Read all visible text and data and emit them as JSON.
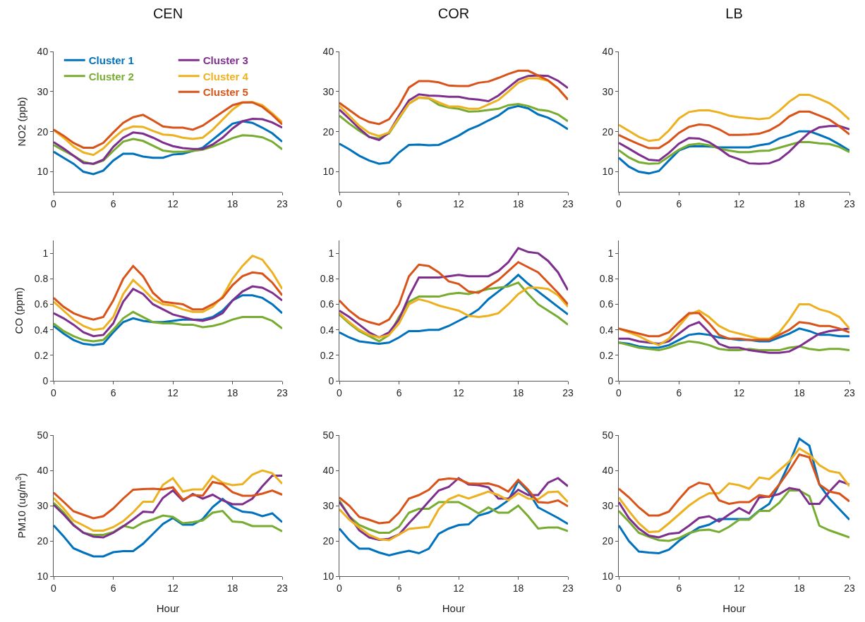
{
  "chart_data": [
    {
      "type": "line",
      "title": "CEN",
      "ylabel": "NO2 (ppb)",
      "legend": "top left",
      "x": [
        0,
        1,
        2,
        3,
        4,
        5,
        6,
        7,
        8,
        9,
        10,
        11,
        12,
        13,
        14,
        15,
        16,
        17,
        18,
        19,
        20,
        21,
        22,
        23
      ],
      "xlim": [
        0,
        23
      ],
      "xticks": [
        0,
        6,
        12,
        18,
        23
      ],
      "ylim": [
        5,
        40
      ],
      "yticks": [
        10,
        20,
        30,
        40
      ],
      "series": [
        {
          "name": "Cluster 1",
          "color": "#0072bd",
          "values": [
            15,
            13.5,
            12,
            10,
            9.4,
            10.3,
            12.8,
            14.5,
            14.5,
            13.8,
            13.5,
            13.5,
            14.3,
            14.5,
            15.2,
            16,
            18,
            20,
            22,
            22.6,
            22.2,
            21,
            19.6,
            17.5
          ]
        },
        {
          "name": "Cluster 2",
          "color": "#77ac30",
          "values": [
            16.7,
            15.3,
            14,
            12.5,
            11.9,
            12.8,
            15.2,
            17.5,
            18.2,
            17.7,
            16.5,
            15.3,
            15,
            15,
            15.2,
            15.5,
            16.3,
            17.3,
            18.4,
            19.1,
            19,
            18.6,
            17.5,
            15.6
          ]
        },
        {
          "name": "Cluster 3",
          "color": "#7e2f8e",
          "values": [
            17.4,
            15.8,
            14,
            12.2,
            12,
            13,
            16.2,
            18.5,
            19.8,
            19.5,
            18.5,
            17.3,
            16.4,
            15.9,
            15.7,
            15.7,
            16.8,
            18.5,
            20.8,
            22.6,
            23.2,
            23.1,
            22.3,
            21
          ]
        },
        {
          "name": "Cluster 4",
          "color": "#edb120",
          "values": [
            20.4,
            18.5,
            16.3,
            14.8,
            14.2,
            15.8,
            18.3,
            20.4,
            21.3,
            21.2,
            20.2,
            19.3,
            19.1,
            18.5,
            18.2,
            18.5,
            20.5,
            23,
            25.5,
            27.3,
            27.4,
            26.6,
            24.6,
            22.3
          ]
        },
        {
          "name": "Cluster 5",
          "color": "#d95319",
          "values": [
            20.5,
            19,
            17.2,
            16,
            16,
            17.2,
            19.8,
            22.2,
            23.6,
            24.2,
            22.8,
            21.3,
            21,
            21,
            20.5,
            21.5,
            23.2,
            24.9,
            26.6,
            27.3,
            27.3,
            26.2,
            24.2,
            21.8
          ]
        }
      ]
    },
    {
      "type": "line",
      "title": "COR",
      "x": [
        0,
        1,
        2,
        3,
        4,
        5,
        6,
        7,
        8,
        9,
        10,
        11,
        12,
        13,
        14,
        15,
        16,
        17,
        18,
        19,
        20,
        21,
        22,
        23
      ],
      "xlim": [
        0,
        23
      ],
      "xticks": [
        0,
        6,
        12,
        18,
        23
      ],
      "ylim": [
        5,
        40
      ],
      "yticks": [
        10,
        20,
        30,
        40
      ],
      "series": [
        {
          "color": "#0072bd",
          "values": [
            17,
            15.6,
            14,
            12.8,
            12,
            12.3,
            14.8,
            16.7,
            16.8,
            16.6,
            16.7,
            17.8,
            19,
            20.5,
            21.5,
            22.8,
            24,
            25.8,
            26.4,
            25.8,
            24.3,
            23.5,
            22.2,
            20.6
          ]
        },
        {
          "color": "#77ac30",
          "values": [
            24,
            22,
            20.2,
            18.7,
            18.3,
            19.6,
            23.3,
            27,
            28.5,
            28.3,
            26.7,
            26,
            25.7,
            25,
            25.1,
            25.4,
            25.7,
            26.6,
            26.9,
            26.4,
            25.5,
            25.2,
            24.3,
            22.6
          ]
        },
        {
          "color": "#7e2f8e",
          "values": [
            25.5,
            23.2,
            20.8,
            18.7,
            17.9,
            19.8,
            24,
            27.8,
            29.3,
            29,
            28.9,
            28.7,
            28.7,
            28.2,
            28,
            27.6,
            29,
            31,
            33,
            33.9,
            34,
            33.9,
            32.7,
            30.9
          ]
        },
        {
          "color": "#edb120",
          "values": [
            26.5,
            24,
            21.5,
            19.7,
            18.9,
            19.8,
            23.5,
            27,
            28.5,
            28.4,
            27.3,
            26.3,
            26.3,
            25.7,
            25.7,
            26.8,
            27.9,
            30,
            32.2,
            33.3,
            33.3,
            32.7,
            30.8,
            28
          ]
        },
        {
          "color": "#d95319",
          "values": [
            27.2,
            25.4,
            23.6,
            22.4,
            21.9,
            23.1,
            26.5,
            31,
            32.6,
            32.6,
            32.3,
            31.5,
            31.4,
            31.4,
            32.2,
            32.5,
            33.4,
            34.4,
            35.2,
            35.2,
            34,
            32.8,
            30.8,
            28
          ]
        }
      ]
    },
    {
      "type": "line",
      "title": "LB",
      "x": [
        0,
        1,
        2,
        3,
        4,
        5,
        6,
        7,
        8,
        9,
        10,
        11,
        12,
        13,
        14,
        15,
        16,
        17,
        18,
        19,
        20,
        21,
        22,
        23
      ],
      "xlim": [
        0,
        23
      ],
      "xticks": [
        0,
        6,
        12,
        18,
        23
      ],
      "ylim": [
        5,
        40
      ],
      "yticks": [
        10,
        20,
        30,
        40
      ],
      "series": [
        {
          "color": "#0072bd",
          "values": [
            13.5,
            11.3,
            10,
            9.6,
            10.2,
            12.8,
            15.3,
            16.3,
            16.4,
            16.3,
            16.1,
            16.1,
            16.1,
            16.1,
            16.6,
            17,
            18.3,
            19.1,
            20.1,
            20.1,
            19.2,
            18.2,
            16.8,
            15.3
          ]
        },
        {
          "color": "#77ac30",
          "values": [
            15.4,
            13.6,
            12.4,
            12,
            12.1,
            13.8,
            15.5,
            16.7,
            17,
            16.6,
            15.8,
            15.3,
            14.9,
            14.9,
            15.2,
            15.3,
            16,
            16.7,
            17.4,
            17.4,
            17.1,
            16.9,
            16.2,
            14.9
          ]
        },
        {
          "color": "#7e2f8e",
          "values": [
            17.2,
            15.8,
            14.3,
            13,
            12.8,
            14.7,
            17,
            18.4,
            18.3,
            17.4,
            15.8,
            14,
            13.1,
            12.1,
            12,
            12.1,
            13,
            15,
            17.5,
            19.8,
            21.1,
            21.4,
            21.4,
            20.6
          ]
        },
        {
          "color": "#edb120",
          "values": [
            21.7,
            20.2,
            18.7,
            17.7,
            18,
            20.3,
            23.3,
            24.9,
            25.3,
            25.3,
            24.8,
            24,
            23.6,
            23.4,
            23.1,
            23.4,
            25.2,
            27.5,
            29.2,
            29.2,
            28.2,
            27.1,
            25.3,
            23
          ]
        },
        {
          "color": "#d95319",
          "values": [
            19.2,
            18,
            16.9,
            15.9,
            15.9,
            17.5,
            19.7,
            21.2,
            21.8,
            21.6,
            20.6,
            19.2,
            19.2,
            19.3,
            19.5,
            20.3,
            21.7,
            23.8,
            25,
            25,
            24,
            23,
            21.3,
            19.3
          ]
        }
      ]
    },
    {
      "type": "line",
      "ylabel": "CO (ppm)",
      "x": [
        0,
        1,
        2,
        3,
        4,
        5,
        6,
        7,
        8,
        9,
        10,
        11,
        12,
        13,
        14,
        15,
        16,
        17,
        18,
        19,
        20,
        21,
        22,
        23
      ],
      "xlim": [
        0,
        23
      ],
      "xticks": [
        0,
        6,
        12,
        18,
        23
      ],
      "ylim": [
        0,
        1.1
      ],
      "yticks": [
        0,
        0.2,
        0.4,
        0.6,
        0.8,
        1
      ],
      "series": [
        {
          "color": "#0072bd",
          "values": [
            0.43,
            0.37,
            0.32,
            0.29,
            0.28,
            0.29,
            0.38,
            0.46,
            0.49,
            0.47,
            0.46,
            0.46,
            0.47,
            0.48,
            0.48,
            0.48,
            0.5,
            0.55,
            0.63,
            0.67,
            0.67,
            0.65,
            0.6,
            0.53
          ]
        },
        {
          "color": "#77ac30",
          "values": [
            0.45,
            0.39,
            0.35,
            0.32,
            0.31,
            0.32,
            0.4,
            0.49,
            0.54,
            0.5,
            0.46,
            0.45,
            0.45,
            0.44,
            0.44,
            0.42,
            0.43,
            0.45,
            0.48,
            0.5,
            0.5,
            0.5,
            0.47,
            0.41
          ]
        },
        {
          "color": "#7e2f8e",
          "values": [
            0.53,
            0.49,
            0.44,
            0.38,
            0.35,
            0.36,
            0.45,
            0.62,
            0.72,
            0.68,
            0.6,
            0.56,
            0.52,
            0.5,
            0.48,
            0.47,
            0.49,
            0.53,
            0.63,
            0.7,
            0.74,
            0.73,
            0.69,
            0.63
          ]
        },
        {
          "color": "#edb120",
          "values": [
            0.62,
            0.55,
            0.48,
            0.43,
            0.4,
            0.41,
            0.5,
            0.68,
            0.79,
            0.72,
            0.64,
            0.6,
            0.59,
            0.56,
            0.54,
            0.54,
            0.58,
            0.66,
            0.8,
            0.9,
            0.98,
            0.95,
            0.85,
            0.72
          ]
        },
        {
          "color": "#d95319",
          "values": [
            0.65,
            0.58,
            0.53,
            0.5,
            0.48,
            0.5,
            0.63,
            0.8,
            0.9,
            0.82,
            0.69,
            0.62,
            0.61,
            0.6,
            0.56,
            0.56,
            0.6,
            0.65,
            0.75,
            0.82,
            0.85,
            0.84,
            0.77,
            0.67
          ]
        }
      ]
    },
    {
      "type": "line",
      "x": [
        0,
        1,
        2,
        3,
        4,
        5,
        6,
        7,
        8,
        9,
        10,
        11,
        12,
        13,
        14,
        15,
        16,
        17,
        18,
        19,
        20,
        21,
        22,
        23
      ],
      "xlim": [
        0,
        23
      ],
      "xticks": [
        0,
        6,
        12,
        18,
        23
      ],
      "ylim": [
        0,
        1.1
      ],
      "yticks": [
        0,
        0.2,
        0.4,
        0.6,
        0.8,
        1
      ],
      "series": [
        {
          "color": "#0072bd",
          "values": [
            0.38,
            0.34,
            0.31,
            0.3,
            0.29,
            0.3,
            0.34,
            0.39,
            0.39,
            0.4,
            0.4,
            0.43,
            0.47,
            0.51,
            0.56,
            0.64,
            0.7,
            0.76,
            0.83,
            0.76,
            0.7,
            0.64,
            0.58,
            0.52
          ]
        },
        {
          "color": "#77ac30",
          "values": [
            0.52,
            0.45,
            0.39,
            0.35,
            0.31,
            0.36,
            0.5,
            0.62,
            0.66,
            0.66,
            0.66,
            0.68,
            0.69,
            0.68,
            0.7,
            0.72,
            0.73,
            0.74,
            0.77,
            0.68,
            0.6,
            0.55,
            0.5,
            0.44
          ]
        },
        {
          "color": "#7e2f8e",
          "values": [
            0.55,
            0.5,
            0.44,
            0.38,
            0.34,
            0.38,
            0.48,
            0.66,
            0.81,
            0.81,
            0.81,
            0.82,
            0.83,
            0.82,
            0.82,
            0.82,
            0.86,
            0.93,
            1.04,
            1.01,
            1,
            0.94,
            0.85,
            0.71
          ]
        },
        {
          "color": "#edb120",
          "values": [
            0.53,
            0.46,
            0.4,
            0.36,
            0.34,
            0.36,
            0.45,
            0.6,
            0.64,
            0.62,
            0.59,
            0.57,
            0.55,
            0.51,
            0.5,
            0.51,
            0.53,
            0.6,
            0.68,
            0.73,
            0.73,
            0.72,
            0.67,
            0.58
          ]
        },
        {
          "color": "#d95319",
          "values": [
            0.63,
            0.55,
            0.49,
            0.46,
            0.44,
            0.48,
            0.6,
            0.82,
            0.91,
            0.9,
            0.85,
            0.78,
            0.76,
            0.7,
            0.69,
            0.74,
            0.79,
            0.86,
            0.93,
            0.89,
            0.85,
            0.77,
            0.69,
            0.6
          ]
        }
      ]
    },
    {
      "type": "line",
      "x": [
        0,
        1,
        2,
        3,
        4,
        5,
        6,
        7,
        8,
        9,
        10,
        11,
        12,
        13,
        14,
        15,
        16,
        17,
        18,
        19,
        20,
        21,
        22,
        23
      ],
      "xlim": [
        0,
        23
      ],
      "xticks": [
        0,
        6,
        12,
        18,
        23
      ],
      "ylim": [
        0,
        1.1
      ],
      "yticks": [
        0,
        0.2,
        0.4,
        0.6,
        0.8,
        1
      ],
      "series": [
        {
          "color": "#0072bd",
          "values": [
            0.3,
            0.29,
            0.27,
            0.26,
            0.26,
            0.28,
            0.32,
            0.36,
            0.37,
            0.36,
            0.34,
            0.33,
            0.32,
            0.32,
            0.31,
            0.31,
            0.34,
            0.37,
            0.41,
            0.39,
            0.36,
            0.36,
            0.35,
            0.35
          ]
        },
        {
          "color": "#77ac30",
          "values": [
            0.3,
            0.28,
            0.26,
            0.25,
            0.24,
            0.26,
            0.29,
            0.31,
            0.3,
            0.28,
            0.25,
            0.24,
            0.24,
            0.25,
            0.24,
            0.24,
            0.24,
            0.26,
            0.27,
            0.25,
            0.24,
            0.25,
            0.25,
            0.24
          ]
        },
        {
          "color": "#7e2f8e",
          "values": [
            0.33,
            0.33,
            0.31,
            0.3,
            0.29,
            0.31,
            0.37,
            0.43,
            0.46,
            0.38,
            0.29,
            0.26,
            0.26,
            0.24,
            0.23,
            0.22,
            0.22,
            0.23,
            0.27,
            0.32,
            0.37,
            0.39,
            0.4,
            0.41
          ]
        },
        {
          "color": "#edb120",
          "values": [
            0.41,
            0.38,
            0.35,
            0.31,
            0.28,
            0.33,
            0.43,
            0.52,
            0.55,
            0.5,
            0.43,
            0.39,
            0.37,
            0.35,
            0.33,
            0.33,
            0.38,
            0.48,
            0.6,
            0.6,
            0.56,
            0.54,
            0.5,
            0.41
          ]
        },
        {
          "color": "#d95319",
          "values": [
            0.41,
            0.39,
            0.37,
            0.35,
            0.35,
            0.38,
            0.46,
            0.53,
            0.53,
            0.45,
            0.36,
            0.33,
            0.33,
            0.32,
            0.32,
            0.32,
            0.36,
            0.4,
            0.46,
            0.45,
            0.43,
            0.43,
            0.41,
            0.38
          ]
        }
      ]
    },
    {
      "type": "line",
      "ylabel": "PM10 (ug/m$^{3}$)",
      "xlabel": "Hour",
      "x": [
        0,
        1,
        2,
        3,
        4,
        5,
        6,
        7,
        8,
        9,
        10,
        11,
        12,
        13,
        14,
        15,
        16,
        17,
        18,
        19,
        20,
        21,
        22,
        23
      ],
      "xlim": [
        0,
        23
      ],
      "xticks": [
        0,
        6,
        12,
        18,
        23
      ],
      "ylim": [
        10,
        50
      ],
      "yticks": [
        10,
        20,
        30,
        40,
        50
      ],
      "series": [
        {
          "color": "#0072bd",
          "values": [
            24.4,
            21.3,
            17.9,
            16.7,
            15.6,
            15.6,
            16.8,
            17.1,
            17.1,
            19.2,
            22,
            24.8,
            26.5,
            24.6,
            24.6,
            26.2,
            29.6,
            31.9,
            29.6,
            28.3,
            28,
            27,
            27.8,
            25.3
          ]
        },
        {
          "color": "#77ac30",
          "values": [
            30.8,
            28.1,
            24.6,
            22.3,
            21.7,
            21.7,
            22.5,
            24.3,
            23.6,
            25.2,
            26.1,
            27.2,
            26.8,
            25,
            25.3,
            25.8,
            28,
            28.5,
            25.5,
            25.3,
            24.2,
            24.2,
            24.2,
            22.7
          ]
        },
        {
          "color": "#7e2f8e",
          "values": [
            30.2,
            27.5,
            24.4,
            22.3,
            21.2,
            21,
            22.3,
            24.1,
            26.1,
            28.3,
            28.1,
            32.2,
            34.3,
            31.4,
            33.3,
            32,
            33.1,
            31.5,
            30.4,
            30.4,
            32,
            35.5,
            38.5,
            38.5
          ]
        },
        {
          "color": "#edb120",
          "values": [
            32.2,
            29.2,
            25.8,
            24.4,
            22.9,
            22.9,
            23.9,
            25.6,
            28.1,
            31.1,
            31.1,
            35.9,
            37.8,
            34,
            34.6,
            34.6,
            38.4,
            36.5,
            35.8,
            36.1,
            38.8,
            40,
            39.2,
            36.2
          ]
        },
        {
          "color": "#d95319",
          "values": [
            33.7,
            31.1,
            28.4,
            27.4,
            26.4,
            27,
            29.2,
            32,
            34.5,
            34.7,
            34.8,
            34.6,
            35.2,
            31.7,
            33,
            32.8,
            36.7,
            36.1,
            33.8,
            32.8,
            32.8,
            33.4,
            34.3,
            33.1
          ]
        }
      ]
    },
    {
      "type": "line",
      "xlabel": "Hour",
      "x": [
        0,
        1,
        2,
        3,
        4,
        5,
        6,
        7,
        8,
        9,
        10,
        11,
        12,
        13,
        14,
        15,
        16,
        17,
        18,
        19,
        20,
        21,
        22,
        23
      ],
      "xlim": [
        0,
        23
      ],
      "xticks": [
        0,
        6,
        12,
        18,
        23
      ],
      "ylim": [
        10,
        50
      ],
      "yticks": [
        10,
        20,
        30,
        40,
        50
      ],
      "series": [
        {
          "color": "#0072bd",
          "values": [
            23.5,
            20.2,
            17.8,
            17.8,
            16.7,
            15.9,
            16.6,
            17.2,
            16.5,
            17.8,
            22,
            23.5,
            24.5,
            24.7,
            27.2,
            28,
            29.5,
            31.5,
            37,
            34,
            29.5,
            28,
            26.5,
            24.8
          ]
        },
        {
          "color": "#77ac30",
          "values": [
            31.5,
            27,
            24.5,
            23.3,
            22.3,
            22.3,
            24,
            28,
            29.1,
            29.1,
            31,
            31,
            31,
            29.5,
            27.8,
            29.5,
            28,
            28,
            30,
            27,
            23.5,
            23.8,
            23.8,
            22.8
          ]
        },
        {
          "color": "#7e2f8e",
          "values": [
            31,
            27,
            23,
            21,
            20.3,
            20.6,
            21.8,
            25,
            28,
            31.2,
            34.3,
            35.3,
            37.8,
            36,
            35.8,
            35.2,
            32,
            32,
            34.5,
            33,
            33,
            36.5,
            37.8,
            35.5
          ]
        },
        {
          "color": "#edb120",
          "values": [
            29,
            26,
            23.8,
            21.7,
            20.5,
            20.2,
            21.8,
            23.4,
            23.7,
            24,
            29,
            31.8,
            33,
            32,
            33,
            34,
            33,
            31.5,
            33.5,
            32,
            31.8,
            33.8,
            34,
            31
          ]
        },
        {
          "color": "#d95319",
          "values": [
            32.3,
            30,
            26.8,
            26,
            25,
            25.3,
            28,
            32,
            33,
            34.5,
            37.3,
            37.7,
            37.5,
            36.3,
            36.2,
            36.3,
            35.5,
            34,
            37.3,
            34.5,
            31,
            30.8,
            31.5,
            29.8
          ]
        }
      ]
    },
    {
      "type": "line",
      "xlabel": "Hour",
      "x": [
        0,
        1,
        2,
        3,
        4,
        5,
        6,
        7,
        8,
        9,
        10,
        11,
        12,
        13,
        14,
        15,
        16,
        17,
        18,
        19,
        20,
        21,
        22,
        23
      ],
      "xlim": [
        0,
        23
      ],
      "xticks": [
        0,
        6,
        12,
        18,
        23
      ],
      "ylim": [
        10,
        50
      ],
      "yticks": [
        10,
        20,
        30,
        40,
        50
      ],
      "series": [
        {
          "color": "#0072bd",
          "values": [
            24.4,
            20,
            17,
            16.7,
            16.5,
            17.5,
            20,
            22,
            23.8,
            24.6,
            26.2,
            26.2,
            26.2,
            26.2,
            28.6,
            30.5,
            36,
            42,
            49,
            47,
            36,
            32,
            29,
            26
          ]
        },
        {
          "color": "#77ac30",
          "values": [
            28.5,
            25.5,
            22.3,
            21.2,
            20.2,
            20,
            20.8,
            22.2,
            23,
            23.2,
            22.5,
            24,
            26,
            26,
            28.5,
            28.5,
            30.8,
            34.3,
            34.3,
            32.7,
            24.3,
            23,
            22,
            21
          ]
        },
        {
          "color": "#7e2f8e",
          "values": [
            31,
            26.5,
            23.5,
            21.5,
            21,
            22,
            22.3,
            24.3,
            26.5,
            27,
            25.5,
            27.5,
            29.3,
            27.8,
            32.3,
            32.6,
            33.3,
            35,
            34.5,
            30.5,
            30.5,
            34,
            37,
            36
          ]
        },
        {
          "color": "#edb120",
          "values": [
            32.3,
            28.5,
            25,
            22.5,
            22.7,
            25,
            27.5,
            30,
            32,
            33.5,
            33.5,
            36.3,
            35.8,
            34.8,
            38,
            37.5,
            40,
            42.5,
            46.2,
            44.5,
            41.5,
            39.8,
            39.3,
            35.5
          ]
        },
        {
          "color": "#d95319",
          "values": [
            34.8,
            32.4,
            29.5,
            27.2,
            27.2,
            28.3,
            31.8,
            35,
            36.5,
            36,
            31.5,
            30.5,
            31,
            31,
            33,
            32.5,
            36,
            40,
            44.5,
            43.7,
            36,
            34,
            33.4,
            31.2
          ]
        }
      ]
    }
  ]
}
